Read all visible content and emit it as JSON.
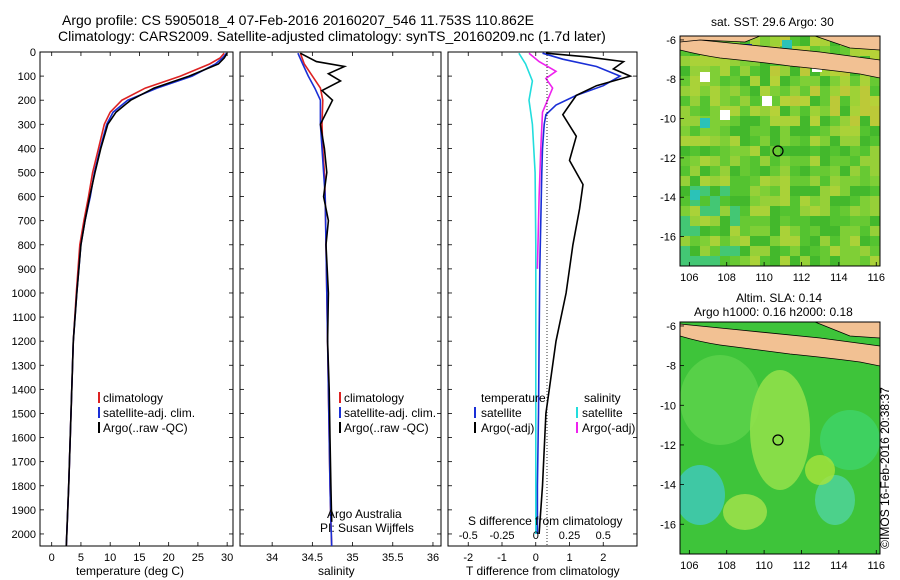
{
  "header": {
    "line1": "Argo profile: CS 5905018_4 07-Feb-2016 20160207_546 11.753S 110.862E",
    "line2": "Climatology: CARS2009. Satellite-adjusted climatology: synTS_20160209.nc (1.7d later)"
  },
  "labels": {
    "temp_xlabel": "temperature (deg C)",
    "sal_xlabel": "salinity",
    "diff_xlabel_bottom": "T difference from climatology",
    "diff_xlabel_top": "S difference from climatology",
    "argo_credit_1": "Argo Australia",
    "argo_credit_2": "PI: Susan Wijffels",
    "sst_title": "sat. SST: 29.6 Argo: 30",
    "sla_title_1": "Altim. SLA: 0.14",
    "sla_title_2": "Argo h1000: 0.16 h2000: 0.18",
    "stamp": "©IMOS 16-Feb-2016 20:38:37"
  },
  "legend_profiles": [
    {
      "label": "climatology",
      "color": "#dd2222"
    },
    {
      "label": "satellite-adj. clim.",
      "color": "#1a2fd6"
    },
    {
      "label": "Argo(..raw -QC)",
      "color": "#000000"
    }
  ],
  "legend_diff": {
    "temp_header": "temperature",
    "sal_header": "salinity",
    "temp_items": [
      {
        "label": "satellite",
        "color": "#1a2fd6"
      },
      {
        "label": "Argo(-adj)",
        "color": "#000000"
      }
    ],
    "sal_items": [
      {
        "label": "satellite",
        "color": "#22dddd"
      },
      {
        "label": "Argo(-adj)",
        "color": "#ee22ee"
      }
    ]
  },
  "chart_data": [
    {
      "type": "line",
      "ylabel": "",
      "xlabel": "temperature (deg C)",
      "xlim": [
        -2,
        31
      ],
      "ylim": [
        2050,
        0
      ],
      "xticks": [
        0,
        5,
        10,
        15,
        20,
        25,
        30
      ],
      "yticks": [
        0,
        100,
        200,
        300,
        400,
        500,
        600,
        700,
        800,
        900,
        1000,
        1100,
        1200,
        1300,
        1400,
        1500,
        1600,
        1700,
        1800,
        1900,
        2000
      ],
      "series": [
        {
          "name": "climatology",
          "color": "#dd2222",
          "x": [
            29.5,
            28.8,
            27,
            22,
            16,
            12,
            10,
            9,
            8,
            7,
            6.3,
            5.5,
            4.8,
            4.2,
            3.7,
            3.3,
            2.9,
            2.5
          ],
          "y": [
            5,
            25,
            50,
            100,
            150,
            200,
            250,
            300,
            400,
            500,
            600,
            700,
            800,
            1000,
            1200,
            1500,
            1800,
            2050
          ]
        },
        {
          "name": "satellite-adj. clim.",
          "color": "#1a2fd6",
          "x": [
            29.9,
            29.2,
            28,
            24,
            18,
            13,
            10.5,
            9.4,
            8.3,
            7.3,
            6.6,
            5.7,
            5,
            4.3,
            3.7,
            3.3,
            2.9,
            2.5
          ],
          "y": [
            5,
            25,
            50,
            100,
            150,
            200,
            250,
            300,
            400,
            500,
            600,
            700,
            800,
            1000,
            1200,
            1500,
            1800,
            2050
          ]
        },
        {
          "name": "Argo(..raw -QC)",
          "color": "#000000",
          "x": [
            30,
            29.5,
            28.5,
            23.5,
            17.5,
            13.5,
            11,
            9.6,
            8.4,
            7.4,
            6.5,
            5.7,
            5,
            4.3,
            3.7,
            3.3,
            2.9,
            2.5
          ],
          "y": [
            5,
            25,
            50,
            100,
            150,
            200,
            250,
            300,
            400,
            500,
            600,
            700,
            800,
            1000,
            1200,
            1500,
            1800,
            2050
          ]
        }
      ]
    },
    {
      "type": "line",
      "xlabel": "salinity",
      "xlim": [
        33.6,
        36.1
      ],
      "ylim": [
        2050,
        0
      ],
      "xticks": [
        34,
        34.5,
        35,
        35.5,
        36
      ],
      "series": [
        {
          "name": "climatology",
          "color": "#dd2222",
          "x": [
            34.35,
            34.4,
            34.5,
            34.6,
            34.63,
            34.62,
            34.63,
            34.65,
            34.66,
            34.67,
            34.68,
            34.69,
            34.7,
            34.71,
            34.72,
            34.73,
            34.74
          ],
          "y": [
            5,
            50,
            100,
            150,
            200,
            300,
            400,
            500,
            600,
            800,
            1000,
            1200,
            1400,
            1600,
            1800,
            1950,
            2050
          ]
        },
        {
          "name": "satellite-adj. clim.",
          "color": "#1a2fd6",
          "x": [
            34.32,
            34.38,
            34.45,
            34.53,
            34.6,
            34.6,
            34.62,
            34.64,
            34.66,
            34.67,
            34.68,
            34.69,
            34.7,
            34.71,
            34.72,
            34.73,
            34.74
          ],
          "y": [
            5,
            50,
            100,
            150,
            200,
            300,
            400,
            500,
            600,
            800,
            1000,
            1200,
            1400,
            1600,
            1800,
            1950,
            2050
          ]
        },
        {
          "name": "Argo(..raw -QC)",
          "color": "#000000",
          "x": [
            34.35,
            34.55,
            34.9,
            34.7,
            34.85,
            34.62,
            34.75,
            34.6,
            34.65,
            34.68,
            34.64,
            34.7,
            34.67,
            34.7,
            34.69,
            34.71,
            34.72,
            34.73,
            34.74
          ],
          "y": [
            5,
            40,
            60,
            90,
            120,
            160,
            200,
            300,
            400,
            500,
            600,
            700,
            800,
            1000,
            1200,
            1400,
            1600,
            1800,
            1950
          ]
        }
      ]
    },
    {
      "type": "line",
      "xlabel": "T difference from climatology",
      "xlim": [
        -2.6,
        3.0
      ],
      "ylim": [
        2050,
        0
      ],
      "xticks": [
        -2,
        -1,
        0,
        1,
        2
      ],
      "top_xticks": [
        -0.5,
        -0.25,
        0,
        0.25,
        0.5
      ],
      "series": [
        {
          "name": "T satellite",
          "color": "#1a2fd6",
          "x": [
            0.2,
            0.8,
            1.8,
            2.5,
            2.0,
            1.2,
            0.6,
            0.3,
            0.25,
            0.2,
            0.18,
            0.15,
            0.12,
            0.1,
            0.08,
            0.05,
            0.05
          ],
          "y": [
            5,
            30,
            60,
            100,
            140,
            180,
            220,
            260,
            300,
            400,
            500,
            700,
            900,
            1200,
            1500,
            1800,
            2000
          ]
        },
        {
          "name": "T Argo(-adj)",
          "color": "#000000",
          "x": [
            0.3,
            1.5,
            2.6,
            2.3,
            2.8,
            1.8,
            1.2,
            1.0,
            0.8,
            1.2,
            1.0,
            1.4,
            1.3,
            1.1,
            0.9,
            0.6,
            0.3,
            0.2,
            0.1
          ],
          "y": [
            5,
            20,
            40,
            70,
            100,
            140,
            180,
            220,
            260,
            350,
            450,
            550,
            650,
            800,
            1000,
            1200,
            1500,
            1800,
            2000
          ]
        },
        {
          "name": "S satellite",
          "color": "#22dddd",
          "x": [
            -0.5,
            -0.3,
            -0.1,
            -0.2,
            -0.1,
            -0.02,
            0.0,
            0.0,
            0.0
          ],
          "y": [
            5,
            50,
            120,
            200,
            300,
            500,
            800,
            1200,
            2000
          ]
        },
        {
          "name": "S Argo(-adj)",
          "color": "#ee22ee",
          "x": [
            -0.2,
            0.1,
            0.6,
            0.3,
            0.5,
            0.2,
            0.15,
            0.1,
            0.05
          ],
          "y": [
            5,
            40,
            80,
            110,
            150,
            250,
            400,
            600,
            900
          ]
        }
      ]
    },
    {
      "type": "heatmap",
      "title": "sat. SST: 29.6 Argo: 30",
      "xlim": [
        105.5,
        116.2
      ],
      "ylim": [
        -17.5,
        -5.8
      ],
      "xticks": [
        106,
        108,
        110,
        112,
        114,
        116
      ],
      "yticks": [
        -6,
        -8,
        -10,
        -12,
        -14,
        -16
      ],
      "marker": [
        110.862,
        -11.753
      ]
    },
    {
      "type": "heatmap",
      "title": "Altim. SLA: 0.14",
      "xlim": [
        105.5,
        116.2
      ],
      "ylim": [
        -17.5,
        -5.8
      ],
      "xticks": [
        106,
        108,
        110,
        112,
        114,
        116
      ],
      "yticks": [
        -6,
        -8,
        -10,
        -12,
        -14,
        -16
      ],
      "marker": [
        110.862,
        -11.753
      ]
    }
  ]
}
